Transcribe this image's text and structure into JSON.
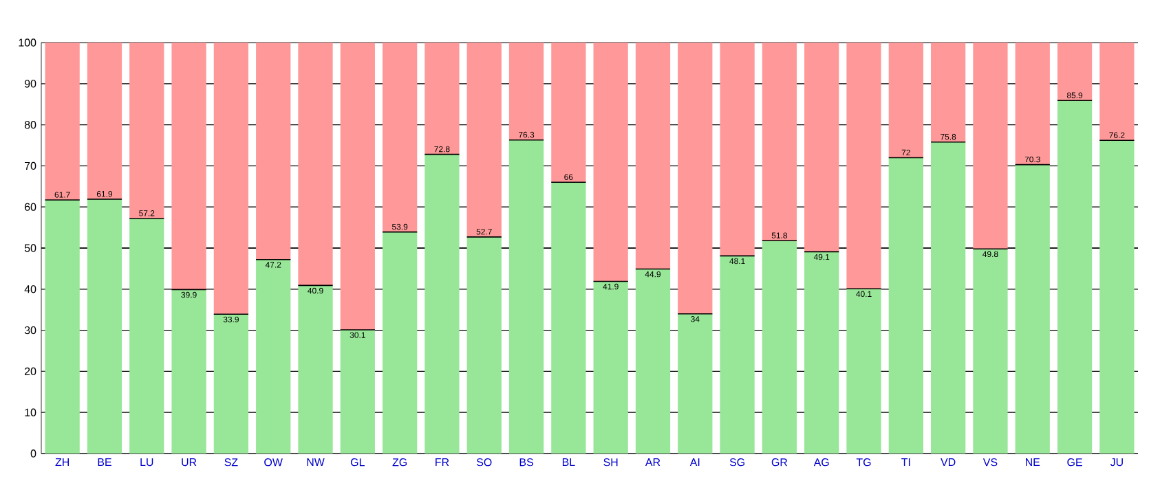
{
  "chart_data": {
    "type": "bar",
    "stacked": true,
    "categories": [
      "ZH",
      "BE",
      "LU",
      "UR",
      "SZ",
      "OW",
      "NW",
      "GL",
      "ZG",
      "FR",
      "SO",
      "BS",
      "BL",
      "SH",
      "AR",
      "AI",
      "SG",
      "GR",
      "AG",
      "TG",
      "TI",
      "VD",
      "VS",
      "NE",
      "GE",
      "JU"
    ],
    "series": [
      {
        "color": "#98e698",
        "values": [
          61.7,
          61.9,
          57.2,
          39.9,
          33.9,
          47.2,
          40.9,
          30.1,
          53.9,
          72.8,
          52.7,
          76.3,
          66,
          41.9,
          44.9,
          34,
          48.1,
          51.8,
          49.1,
          40.1,
          72,
          75.8,
          49.8,
          70.3,
          85.9,
          76.2
        ],
        "value_labels": [
          "61.7",
          "61.9",
          "57.2",
          "39.9",
          "33.9",
          "47.2",
          "40.9",
          "30.1",
          "53.9",
          "72.8",
          "52.7",
          "76.3",
          "66",
          "41.9",
          "44.9",
          "34",
          "48.1",
          "51.8",
          "49.1",
          "40.1",
          "72",
          "75.8",
          "49.8",
          "70.3",
          "85.9",
          "76.2"
        ]
      },
      {
        "color": "#ff9999",
        "values": [
          38.3,
          38.1,
          42.8,
          60.1,
          66.1,
          52.8,
          59.1,
          69.9,
          46.1,
          27.2,
          47.3,
          23.7,
          34,
          58.1,
          55.1,
          66,
          51.9,
          48.2,
          50.9,
          59.9,
          28,
          24.2,
          50.2,
          29.7,
          14.1,
          23.8
        ]
      }
    ],
    "ylim": [
      0,
      100
    ],
    "yticks": [
      0,
      10,
      20,
      30,
      40,
      50,
      60,
      70,
      80,
      90,
      100
    ],
    "grid": "y",
    "ref_lines": [
      {
        "axis": "y",
        "value": 50,
        "color": "#000000"
      }
    ]
  }
}
